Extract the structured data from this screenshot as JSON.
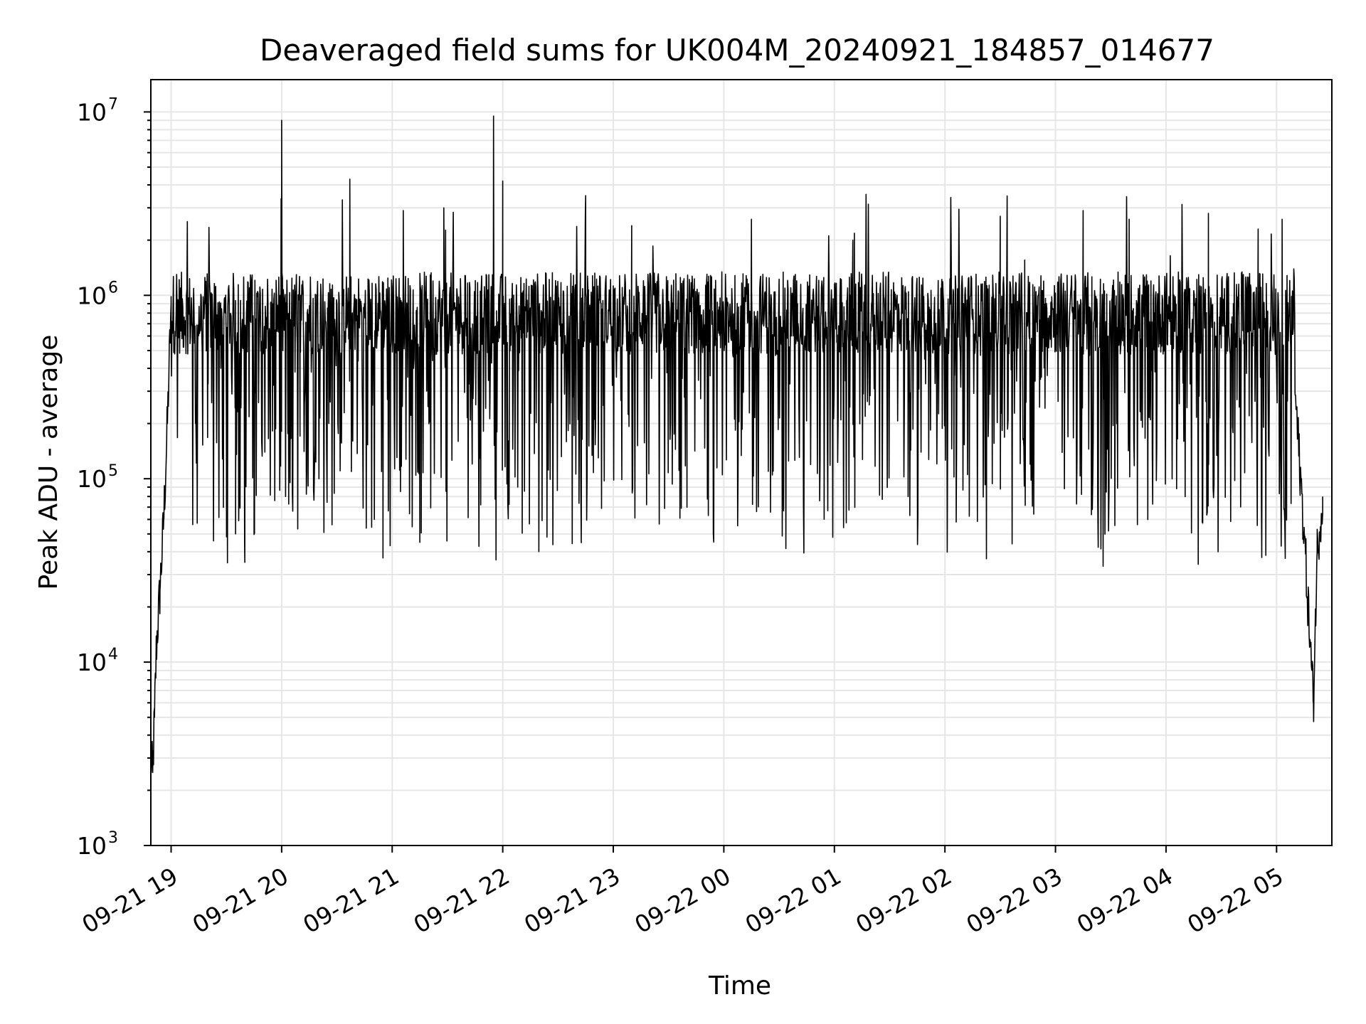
{
  "chart_data": {
    "type": "line",
    "title": "Deaveraged field sums for UK004M_20240921_184857_014677",
    "xlabel": "Time",
    "ylabel": "Peak ADU - average",
    "yscale": "log",
    "ylim": [
      1000,
      15000000
    ],
    "xlim": [
      "2024-09-21 18:49",
      "2024-09-22 05:30"
    ],
    "grid": true,
    "x_tick_labels": [
      "09-21 19",
      "09-21 20",
      "09-21 21",
      "09-21 22",
      "09-21 23",
      "09-22 00",
      "09-22 01",
      "09-22 02",
      "09-22 03",
      "09-22 04",
      "09-22 05"
    ],
    "x_tick_values": [
      "2024-09-21 19:00",
      "2024-09-21 20:00",
      "2024-09-21 21:00",
      "2024-09-21 22:00",
      "2024-09-21 23:00",
      "2024-09-22 00:00",
      "2024-09-22 01:00",
      "2024-09-22 02:00",
      "2024-09-22 03:00",
      "2024-09-22 04:00",
      "2024-09-22 05:00"
    ],
    "y_ticks": [
      {
        "base": "10",
        "exp": "3",
        "value": 1000
      },
      {
        "base": "10",
        "exp": "4",
        "value": 10000
      },
      {
        "base": "10",
        "exp": "5",
        "value": 100000
      },
      {
        "base": "10",
        "exp": "6",
        "value": 1000000
      },
      {
        "base": "10",
        "exp": "7",
        "value": 10000000
      }
    ],
    "series": [
      {
        "color": "#000000",
        "points": [
          [
            "2024-09-21 18:49",
            3000
          ],
          [
            "2024-09-21 18:50",
            2500
          ],
          [
            "2024-09-21 18:51",
            5000
          ],
          [
            "2024-09-21 18:52",
            12000
          ],
          [
            "2024-09-21 18:54",
            25000
          ],
          [
            "2024-09-21 18:56",
            60000
          ],
          [
            "2024-09-21 18:58",
            200000
          ],
          [
            "2024-09-21 19:00",
            900000
          ],
          [
            "2024-09-21 19:03",
            1300000
          ],
          [
            "2024-09-21 19:10",
            1100000
          ],
          [
            "2024-09-21 19:20",
            900000
          ],
          [
            "2024-09-21 19:27",
            400000
          ],
          [
            "2024-09-21 19:30",
            200000
          ],
          [
            "2024-09-21 19:35",
            50000
          ],
          [
            "2024-09-21 19:40",
            35000
          ],
          [
            "2024-09-21 19:45",
            200000
          ],
          [
            "2024-09-21 19:55",
            500000
          ],
          [
            "2024-09-21 20:00",
            9000000
          ],
          [
            "2024-09-21 20:10",
            700000
          ],
          [
            "2024-09-21 20:37",
            4300000
          ],
          [
            "2024-09-21 20:55",
            37000
          ],
          [
            "2024-09-21 21:06",
            2900000
          ],
          [
            "2024-09-21 21:15",
            45000
          ],
          [
            "2024-09-21 21:28",
            3000000
          ],
          [
            "2024-09-21 21:45",
            600000
          ],
          [
            "2024-09-21 21:55",
            9500000
          ],
          [
            "2024-09-21 22:00",
            4200000
          ],
          [
            "2024-09-21 22:20",
            900000
          ],
          [
            "2024-09-21 22:45",
            3500000
          ],
          [
            "2024-09-21 23:10",
            2400000
          ],
          [
            "2024-09-21 23:40",
            70000
          ],
          [
            "2024-09-22 00:15",
            2600000
          ],
          [
            "2024-09-22 00:40",
            900000
          ],
          [
            "2024-09-22 01:10",
            2000000
          ],
          [
            "2024-09-22 01:40",
            80000
          ],
          [
            "2024-09-22 02:05",
            700000
          ],
          [
            "2024-09-22 02:30",
            2700000
          ],
          [
            "2024-09-22 03:00",
            700000
          ],
          [
            "2024-09-22 03:15",
            2900000
          ],
          [
            "2024-09-22 03:40",
            2600000
          ],
          [
            "2024-09-22 04:10",
            900000
          ],
          [
            "2024-09-22 04:23",
            2800000
          ],
          [
            "2024-09-22 04:50",
            2300000
          ],
          [
            "2024-09-22 05:03",
            2600000
          ],
          [
            "2024-09-22 05:10",
            300000
          ],
          [
            "2024-09-22 05:15",
            50000
          ],
          [
            "2024-09-22 05:20",
            6000
          ],
          [
            "2024-09-22 05:22",
            40000
          ],
          [
            "2024-09-22 05:25",
            80000
          ]
        ]
      }
    ]
  }
}
